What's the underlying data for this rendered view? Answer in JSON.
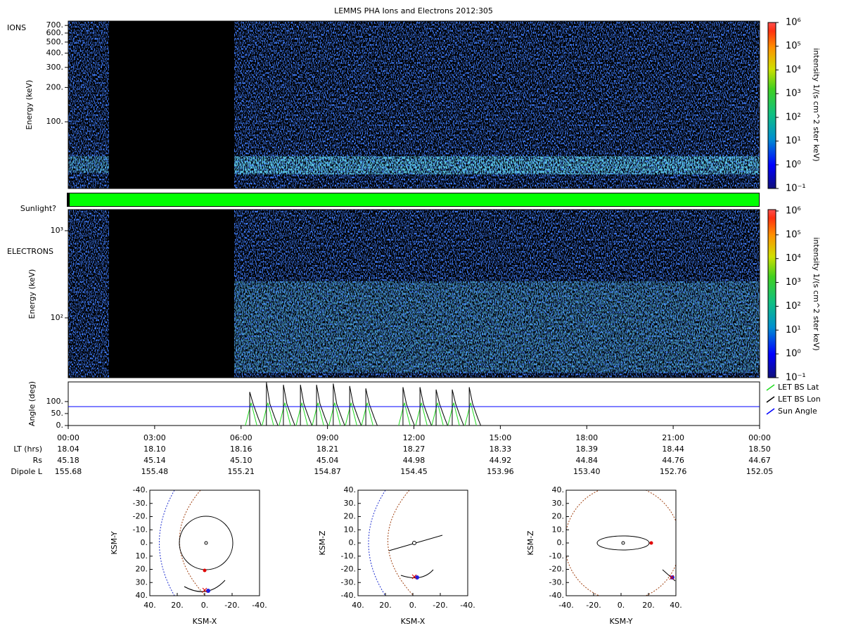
{
  "title": "LEMMS PHA Ions and Electrons  2012:305",
  "ions": {
    "label": "IONS",
    "ylabel": "Energy (keV)",
    "log_scale": true,
    "ylim": [
      26,
      764
    ],
    "yticks": [
      {
        "value": 700,
        "label": "700."
      },
      {
        "value": 600,
        "label": "600."
      },
      {
        "value": 500,
        "label": "500."
      },
      {
        "value": 400,
        "label": "400."
      },
      {
        "value": 300,
        "label": "300."
      },
      {
        "value": 200,
        "label": "200."
      },
      {
        "value": 100,
        "label": "100."
      }
    ]
  },
  "sunlight": {
    "label": "Sunlight?",
    "color": "#00ff00"
  },
  "electrons": {
    "label": "ELECTRONS",
    "ylabel": "Energy (keV)",
    "log_scale": true,
    "ylim": [
      20.6,
      1746
    ],
    "yticks": [
      {
        "value": 100,
        "label": "10²"
      },
      {
        "value": 1000,
        "label": "10³"
      }
    ]
  },
  "colorbar": {
    "label": "intensity 1/(s cm^2 ster keV)",
    "log_scale": true,
    "lim": [
      0.1,
      1000000
    ],
    "ticks": [
      {
        "value": 0.1,
        "label": "10⁻¹"
      },
      {
        "value": 1,
        "label": "10⁰"
      },
      {
        "value": 10,
        "label": "10¹"
      },
      {
        "value": 100,
        "label": "10²"
      },
      {
        "value": 1000,
        "label": "10³"
      },
      {
        "value": 10000,
        "label": "10⁴"
      },
      {
        "value": 100000,
        "label": "10⁵"
      },
      {
        "value": 1000000,
        "label": "10⁶"
      }
    ]
  },
  "angle": {
    "type": "line",
    "ylabel": "Angle (deg)",
    "ylim": [
      0,
      182
    ],
    "yticks": [
      {
        "value": 0,
        "label": "0."
      },
      {
        "value": 50,
        "label": "50."
      },
      {
        "value": 100,
        "label": "100."
      }
    ],
    "series": [
      {
        "name": "LET BS Lat",
        "color": "#22dd22",
        "x": [
          6.15,
          6.35,
          6.55,
          null,
          6.73,
          6.93,
          7.13,
          null,
          7.32,
          7.52,
          7.72,
          null,
          7.91,
          8.11,
          8.31,
          null,
          8.47,
          8.67,
          8.87,
          null,
          9.05,
          9.25,
          9.45,
          null,
          9.62,
          9.82,
          10.02,
          null,
          10.18,
          10.38,
          10.58,
          null,
          11.47,
          11.67,
          11.87,
          null,
          12.06,
          12.26,
          12.46,
          null,
          12.62,
          12.82,
          13.02,
          null,
          13.18,
          13.38,
          13.58,
          null,
          13.77,
          13.97,
          14.17
        ],
        "values": [
          0,
          95,
          0,
          null,
          0,
          95,
          0,
          null,
          0,
          95,
          0,
          null,
          0,
          95,
          0,
          null,
          0,
          95,
          0,
          null,
          0,
          95,
          0,
          null,
          0,
          95,
          0,
          null,
          0,
          95,
          0,
          null,
          0,
          95,
          0,
          null,
          0,
          95,
          0,
          null,
          0,
          95,
          0,
          null,
          0,
          95,
          0,
          null,
          0,
          95,
          0
        ]
      },
      {
        "name": "LET BS Lon",
        "color": "#000000",
        "x": [
          6.3,
          6.3,
          6.42,
          6.6,
          6.7,
          null,
          6.88,
          6.88,
          7.0,
          7.18,
          7.28,
          null,
          7.47,
          7.47,
          7.59,
          7.77,
          7.87,
          null,
          8.06,
          8.06,
          8.18,
          8.36,
          8.46,
          null,
          8.62,
          8.62,
          8.74,
          8.92,
          9.02,
          null,
          9.2,
          9.2,
          9.32,
          9.5,
          9.6,
          null,
          9.77,
          9.77,
          9.89,
          10.07,
          10.17,
          null,
          10.33,
          10.33,
          10.45,
          10.63,
          10.73,
          null,
          11.62,
          11.62,
          11.74,
          11.92,
          12.02,
          null,
          12.21,
          12.21,
          12.33,
          12.51,
          12.61,
          null,
          12.77,
          12.77,
          12.89,
          13.07,
          13.17,
          null,
          13.33,
          13.33,
          13.45,
          13.63,
          13.73,
          null,
          13.92,
          13.92,
          14.04,
          14.22,
          14.32
        ],
        "values": [
          0,
          140,
          90,
          30,
          0,
          null,
          0,
          180,
          90,
          30,
          0,
          null,
          0,
          170,
          90,
          30,
          0,
          null,
          0,
          170,
          90,
          30,
          0,
          null,
          0,
          170,
          90,
          30,
          0,
          null,
          0,
          175,
          90,
          30,
          0,
          null,
          0,
          165,
          90,
          30,
          0,
          null,
          0,
          155,
          90,
          30,
          0,
          null,
          0,
          160,
          90,
          30,
          0,
          null,
          0,
          160,
          90,
          30,
          0,
          null,
          0,
          150,
          90,
          30,
          0,
          null,
          0,
          150,
          90,
          30,
          0,
          null,
          0,
          160,
          90,
          30,
          0
        ]
      },
      {
        "name": "Sun Angle",
        "color": "#0000ff",
        "x": [
          0,
          24
        ],
        "values": [
          79,
          79
        ]
      }
    ]
  },
  "x_axis": {
    "xlim": [
      0,
      24
    ],
    "xticks": [
      {
        "value": 0,
        "label": "00:00"
      },
      {
        "value": 3,
        "label": "03:00"
      },
      {
        "value": 6,
        "label": "06:00"
      },
      {
        "value": 9,
        "label": "09:00"
      },
      {
        "value": 12,
        "label": "12:00"
      },
      {
        "value": 15,
        "label": "15:00"
      },
      {
        "value": 18,
        "label": "18:00"
      },
      {
        "value": 21,
        "label": "21:00"
      },
      {
        "value": 24,
        "label": "00:00"
      }
    ]
  },
  "ephemeris": {
    "rows": [
      {
        "label": "LT (hrs)",
        "values": [
          "18.04",
          "18.10",
          "18.16",
          "18.21",
          "18.27",
          "18.33",
          "18.39",
          "18.44",
          "18.50"
        ]
      },
      {
        "label": "Rs",
        "values": [
          "45.18",
          "45.14",
          "45.10",
          "45.04",
          "44.98",
          "44.92",
          "44.84",
          "44.76",
          "44.67"
        ]
      },
      {
        "label": "Dipole L",
        "values": [
          "155.68",
          "155.48",
          "155.21",
          "154.87",
          "154.45",
          "153.96",
          "153.40",
          "152.76",
          "152.05"
        ]
      }
    ]
  },
  "orbit_plots": [
    {
      "xlabel": "KSM-X",
      "ylabel": "KSM-Y",
      "xlim": [
        40,
        -40
      ],
      "ylim": [
        40,
        -40
      ],
      "xticks": [
        {
          "value": 40,
          "label": "40."
        },
        {
          "value": 20,
          "label": "20."
        },
        {
          "value": 0,
          "label": "0."
        },
        {
          "value": -20,
          "label": "-20."
        },
        {
          "value": -40,
          "label": "-40."
        }
      ],
      "yticks": [
        {
          "value": -40,
          "label": "-40."
        },
        {
          "value": -30,
          "label": "-30."
        },
        {
          "value": -20,
          "label": "-20."
        },
        {
          "value": -10,
          "label": "-10."
        },
        {
          "value": 0,
          "label": "0."
        },
        {
          "value": 10,
          "label": "10."
        },
        {
          "value": 20,
          "label": "20."
        },
        {
          "value": 30,
          "label": "30."
        },
        {
          "value": 40,
          "label": "40."
        }
      ]
    },
    {
      "xlabel": "KSM-X",
      "ylabel": "KSM-Z",
      "xlim": [
        40,
        -40
      ],
      "ylim": [
        -40,
        40
      ],
      "xticks": [
        {
          "value": 40,
          "label": "40."
        },
        {
          "value": 20,
          "label": "20."
        },
        {
          "value": 0,
          "label": "0."
        },
        {
          "value": -20,
          "label": "-20."
        },
        {
          "value": -40,
          "label": "-40."
        }
      ],
      "yticks": [
        {
          "value": 40,
          "label": "40."
        },
        {
          "value": 30,
          "label": "30."
        },
        {
          "value": 20,
          "label": "20."
        },
        {
          "value": 10,
          "label": "10."
        },
        {
          "value": 0,
          "label": "0."
        },
        {
          "value": -10,
          "label": "-10."
        },
        {
          "value": -20,
          "label": "-20."
        },
        {
          "value": -30,
          "label": "-30."
        },
        {
          "value": -40,
          "label": "-40."
        }
      ]
    },
    {
      "xlabel": "KSM-Y",
      "ylabel": "KSM-Z",
      "xlim": [
        -40,
        40
      ],
      "ylim": [
        -40,
        40
      ],
      "xticks": [
        {
          "value": -40,
          "label": "-40."
        },
        {
          "value": -20,
          "label": "-20."
        },
        {
          "value": 0,
          "label": "0."
        },
        {
          "value": 20,
          "label": "20."
        },
        {
          "value": 40,
          "label": "40."
        }
      ],
      "yticks": [
        {
          "value": 40,
          "label": "40."
        },
        {
          "value": 30,
          "label": "30."
        },
        {
          "value": 20,
          "label": "20."
        },
        {
          "value": 10,
          "label": "10."
        },
        {
          "value": 0,
          "label": "0."
        },
        {
          "value": -10,
          "label": "-10."
        },
        {
          "value": -20,
          "label": "-20."
        },
        {
          "value": -30,
          "label": "-30."
        },
        {
          "value": -40,
          "label": "-40."
        }
      ]
    }
  ]
}
